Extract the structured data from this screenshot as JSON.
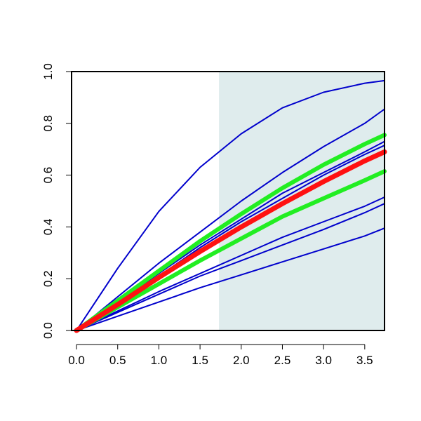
{
  "chart_data": {
    "type": "line",
    "title": "",
    "xlabel": "",
    "ylabel": "",
    "xlim": [
      -0.06,
      3.74
    ],
    "ylim": [
      0.0,
      1.0
    ],
    "grid": false,
    "shaded_region": {
      "x_start": 1.73,
      "x_end": 3.74,
      "color": "#dfeced"
    },
    "x_ticks": [
      {
        "value": 0.0,
        "label": "0.0"
      },
      {
        "value": 0.5,
        "label": "0.5"
      },
      {
        "value": 1.0,
        "label": "1.0"
      },
      {
        "value": 1.5,
        "label": "1.5"
      },
      {
        "value": 2.0,
        "label": "2.0"
      },
      {
        "value": 2.5,
        "label": "2.5"
      },
      {
        "value": 3.0,
        "label": "3.0"
      },
      {
        "value": 3.5,
        "label": "3.5"
      }
    ],
    "y_ticks": [
      {
        "value": 0.0,
        "label": "0.0"
      },
      {
        "value": 0.2,
        "label": "0.2"
      },
      {
        "value": 0.4,
        "label": "0.4"
      },
      {
        "value": 0.6,
        "label": "0.6"
      },
      {
        "value": 0.8,
        "label": "0.8"
      },
      {
        "value": 1.0,
        "label": "1.0"
      }
    ],
    "x": [
      0.0,
      0.5,
      1.0,
      1.5,
      2.0,
      2.5,
      3.0,
      3.5,
      3.74
    ],
    "series": [
      {
        "color": "#0000cc",
        "width": 2,
        "values": [
          0.0,
          0.24,
          0.46,
          0.63,
          0.76,
          0.86,
          0.92,
          0.955,
          0.965
        ]
      },
      {
        "color": "#0000cc",
        "width": 2,
        "values": [
          0.0,
          0.13,
          0.26,
          0.38,
          0.5,
          0.61,
          0.71,
          0.8,
          0.855
        ]
      },
      {
        "color": "#0000cc",
        "width": 2,
        "values": [
          0.0,
          0.11,
          0.22,
          0.33,
          0.43,
          0.53,
          0.61,
          0.69,
          0.73
        ]
      },
      {
        "color": "#0000cc",
        "width": 2,
        "values": [
          0.0,
          0.105,
          0.21,
          0.32,
          0.42,
          0.51,
          0.6,
          0.68,
          0.715
        ]
      },
      {
        "color": "#0000cc",
        "width": 2,
        "values": [
          0.0,
          0.075,
          0.15,
          0.22,
          0.29,
          0.36,
          0.42,
          0.48,
          0.515
        ]
      },
      {
        "color": "#0000cc",
        "width": 2,
        "values": [
          0.0,
          0.07,
          0.14,
          0.21,
          0.27,
          0.33,
          0.39,
          0.455,
          0.49
        ]
      },
      {
        "color": "#0000cc",
        "width": 2,
        "values": [
          0.0,
          0.055,
          0.11,
          0.165,
          0.215,
          0.265,
          0.315,
          0.365,
          0.395
        ]
      },
      {
        "color": "#22ee22",
        "width": 6,
        "values": [
          0.0,
          0.115,
          0.23,
          0.345,
          0.45,
          0.55,
          0.64,
          0.72,
          0.755
        ]
      },
      {
        "color": "#22ee22",
        "width": 6,
        "values": [
          0.0,
          0.09,
          0.18,
          0.27,
          0.355,
          0.44,
          0.51,
          0.58,
          0.615
        ]
      },
      {
        "color": "#ff1111",
        "width": 7,
        "values": [
          0.0,
          0.1,
          0.205,
          0.305,
          0.4,
          0.49,
          0.575,
          0.655,
          0.69
        ]
      }
    ]
  }
}
